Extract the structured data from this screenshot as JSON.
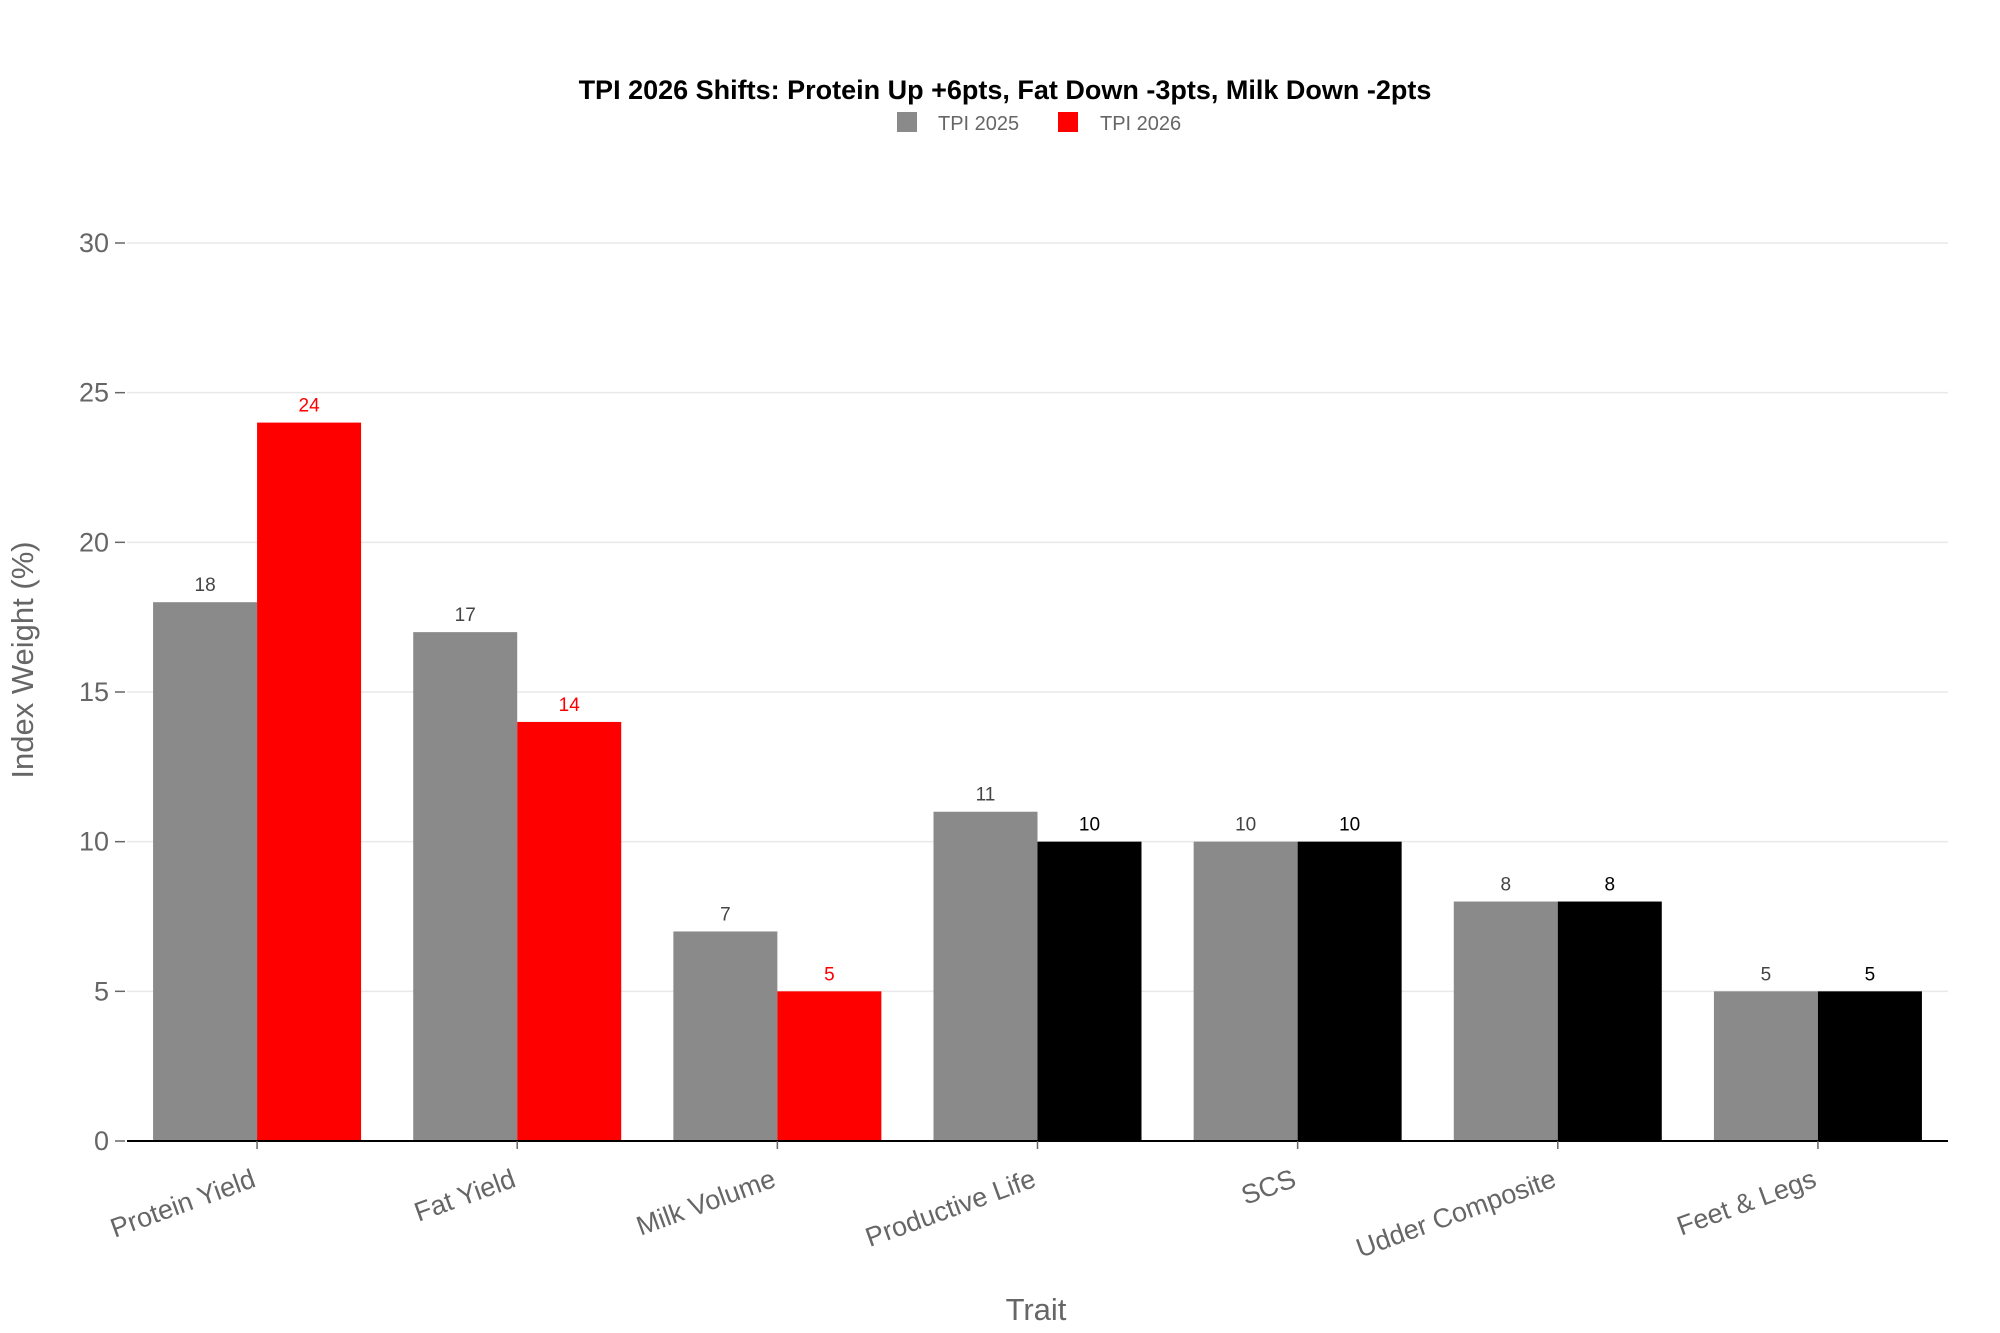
{
  "chart_data": {
    "type": "bar",
    "title": "TPI 2026 Shifts: Protein Up +6pts, Fat Down -3pts, Milk Down -2pts",
    "xlabel": "Trait",
    "ylabel": "Index Weight (%)",
    "ylim": [
      0,
      30
    ],
    "yticks": [
      0,
      5,
      10,
      15,
      20,
      25,
      30
    ],
    "grid": true,
    "legend_position": "top-center",
    "categories": [
      "Protein Yield",
      "Fat Yield",
      "Milk Volume",
      "Productive Life",
      "SCS",
      "Udder Composite",
      "Feet & Legs"
    ],
    "series": [
      {
        "name": "TPI 2025",
        "values": [
          18,
          17,
          7,
          11,
          10,
          8,
          5
        ],
        "color": "#8a8a8a",
        "label_color": "#444444"
      },
      {
        "name": "TPI 2026",
        "values": [
          24,
          14,
          5,
          10,
          10,
          8,
          5
        ],
        "color": "#ff0000",
        "bar_colors": [
          "#ff0000",
          "#ff0000",
          "#ff0000",
          "#000000",
          "#000000",
          "#000000",
          "#000000"
        ],
        "label_colors": [
          "#ff0000",
          "#ff0000",
          "#ff0000",
          "#000000",
          "#000000",
          "#000000",
          "#000000"
        ]
      }
    ]
  }
}
